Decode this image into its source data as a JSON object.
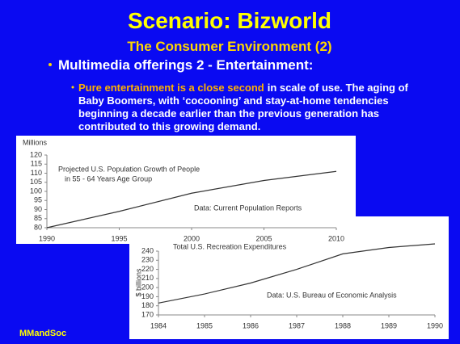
{
  "slide": {
    "title": "Scenario: Bizworld",
    "subtitle": "The Consumer Environment (2)",
    "bullet": "Multimedia offerings 2 - Entertainment:",
    "sub_bullet": {
      "highlight": "Pure entertainment is a close second",
      "lines": [
        "in scale of use. The aging of",
        "Baby Boomers, with ‘cocooning’ and stay-at-home tendencies",
        "beginning a decade earlier than the previous generation has",
        "contributed to this growing demand."
      ]
    },
    "footer": "MMandSoc"
  },
  "chart_data": [
    {
      "type": "line",
      "ylabel": "Millions",
      "annotations": [
        "Projected U.S. Population Growth of People",
        "in 55 - 64 Years Age Group",
        "Data: Current Population Reports"
      ],
      "x": [
        1990,
        1995,
        2000,
        2005,
        2010
      ],
      "values": [
        80,
        89,
        99,
        106,
        111
      ],
      "color": "#333333",
      "xlim": [
        1990,
        2010
      ],
      "xticks": [
        1990,
        1995,
        2000,
        2005,
        2010
      ],
      "ylim": [
        80,
        120
      ],
      "yticks": [
        80,
        85,
        90,
        95,
        100,
        105,
        110,
        115,
        120
      ]
    },
    {
      "type": "line",
      "title": "Total U.S. Recreation Expenditures",
      "ylabel": "$ billions",
      "annotations": [
        "Data: U.S. Bureau of Economic Analysis"
      ],
      "x": [
        1984,
        1985,
        1986,
        1987,
        1988,
        1989,
        1990
      ],
      "values": [
        183,
        193,
        205,
        220,
        237,
        244,
        248
      ],
      "color": "#333333",
      "xlim": [
        1984,
        1990
      ],
      "xticks": [
        1984,
        1985,
        1986,
        1987,
        1988,
        1989,
        1990
      ],
      "ylim": [
        170,
        240
      ],
      "yticks": [
        170,
        180,
        190,
        200,
        210,
        220,
        230,
        240
      ]
    }
  ]
}
